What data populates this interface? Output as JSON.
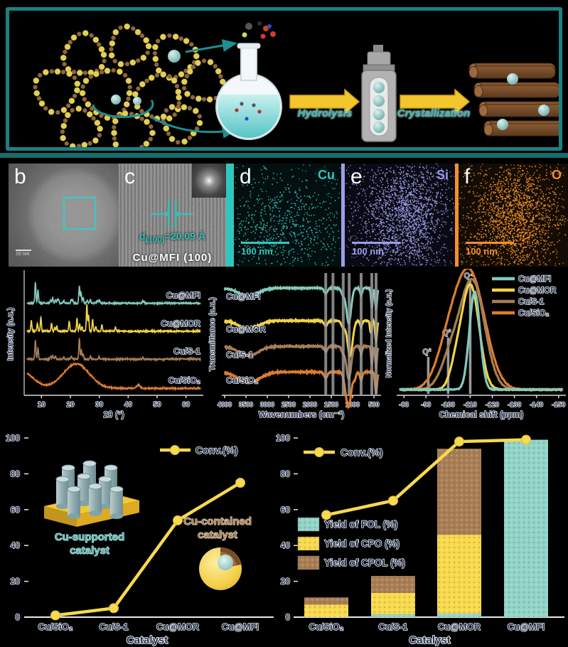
{
  "figure": {
    "scheme": {
      "hydrolysis": "Hydrolysis",
      "crystallization": "Crystallization"
    },
    "tem_panels": {
      "b": {
        "label": "b",
        "scalebar": "10 nm"
      },
      "c": {
        "label": "c",
        "d_prefix": "d",
        "d_sub": "(100)",
        "d_value": "=20.09 Å",
        "caption": "Cu@MFI (100)"
      },
      "d": {
        "label": "d",
        "element": "Cu",
        "scalebar": "100 nm",
        "color": "#2fc7bd"
      },
      "e": {
        "label": "e",
        "element": "Si",
        "scalebar": "100 nm",
        "color": "#9d9de8"
      },
      "f": {
        "label": "f",
        "element": "O",
        "scalebar": "100 nm",
        "color": "#f2912b"
      }
    }
  },
  "colors": {
    "teal_accent": "#1d8080",
    "series_teal": "#82cbbd",
    "series_yellow": "#f2d348",
    "series_brown": "#a87e55",
    "series_orange": "#dd7d2e",
    "conv_line": "#f6d94f"
  },
  "chart_data": [
    {
      "id": "xrd",
      "type": "line",
      "xlabel": "2θ (°)",
      "ylabel": "Intensity (a.u.)",
      "xlim": [
        5,
        65
      ],
      "xticks": [
        10,
        20,
        30,
        40,
        50,
        60
      ],
      "series": [
        {
          "name": "Cu@MFI",
          "color": "#82cbbd",
          "offset": 0.79,
          "peaks": [
            [
              7.9,
              0.17
            ],
            [
              8.8,
              0.11
            ],
            [
              13.2,
              0.03
            ],
            [
              13.9,
              0.045
            ],
            [
              14.8,
              0.03
            ],
            [
              15.5,
              0.028
            ],
            [
              15.9,
              0.032
            ],
            [
              17.7,
              0.022
            ],
            [
              20.3,
              0.032
            ],
            [
              20.8,
              0.025
            ],
            [
              23.1,
              0.14
            ],
            [
              23.7,
              0.09
            ],
            [
              24.4,
              0.05
            ],
            [
              25.9,
              0.022
            ],
            [
              26.9,
              0.032
            ],
            [
              29.3,
              0.022
            ],
            [
              29.9,
              0.02
            ],
            [
              30.3,
              0.015
            ],
            [
              45.0,
              0.016
            ],
            [
              45.5,
              0.012
            ]
          ]
        },
        {
          "name": "Cu@MOR",
          "color": "#f2d348",
          "offset": 0.55,
          "peaks": [
            [
              6.5,
              0.085
            ],
            [
              8.6,
              0.06
            ],
            [
              9.8,
              0.115
            ],
            [
              13.5,
              0.065
            ],
            [
              14.6,
              0.032
            ],
            [
              15.3,
              0.045
            ],
            [
              19.6,
              0.085
            ],
            [
              22.3,
              0.105
            ],
            [
              23.2,
              0.06
            ],
            [
              24.0,
              0.04
            ],
            [
              25.7,
              0.22
            ],
            [
              26.3,
              0.13
            ],
            [
              27.7,
              0.095
            ],
            [
              28.8,
              0.04
            ],
            [
              30.9,
              0.055
            ],
            [
              35.6,
              0.03
            ]
          ]
        },
        {
          "name": "Cu/S-1",
          "color": "#a87e55",
          "offset": 0.31,
          "peaks": [
            [
              7.9,
              0.155
            ],
            [
              8.8,
              0.095
            ],
            [
              13.2,
              0.025
            ],
            [
              13.9,
              0.035
            ],
            [
              14.8,
              0.025
            ],
            [
              17.7,
              0.02
            ],
            [
              20.3,
              0.025
            ],
            [
              23.1,
              0.17
            ],
            [
              23.8,
              0.08
            ],
            [
              24.4,
              0.045
            ],
            [
              26.9,
              0.025
            ],
            [
              29.9,
              0.02
            ],
            [
              45.0,
              0.014
            ]
          ]
        },
        {
          "name": "Cu/SiO₂",
          "color": "#dd7d2e",
          "offset": 0.06,
          "peaks": [
            [
              3,
              0.14,
              4
            ],
            [
              22,
              0.2,
              4.5
            ],
            [
              43.5,
              0.025,
              0.6
            ]
          ]
        }
      ]
    },
    {
      "id": "ftir",
      "type": "line",
      "xlabel": "Wavenumbers (cm⁻¹)",
      "ylabel": "Transmittance (a.u.)",
      "xlim": [
        4000,
        400
      ],
      "xticks": [
        4000,
        3500,
        3000,
        2500,
        2000,
        1500,
        1000,
        500
      ],
      "bands": [
        1630,
        1460,
        1220,
        1080,
        800,
        550,
        450
      ],
      "series": [
        {
          "name": "Cu@MFI",
          "color": "#82cbbd",
          "offset": 0.92,
          "dips": [
            [
              3440,
              0.07,
              230
            ],
            [
              1630,
              0.045,
              40
            ],
            [
              1225,
              0.055,
              40
            ],
            [
              1090,
              0.3,
              55
            ],
            [
              800,
              0.06,
              25
            ],
            [
              550,
              0.17,
              18
            ],
            [
              450,
              0.18,
              22
            ]
          ]
        },
        {
          "name": "Cu@MOR",
          "color": "#f2d348",
          "offset": 0.64,
          "dips": [
            [
              3440,
              0.07,
              230
            ],
            [
              1630,
              0.045,
              40
            ],
            [
              1220,
              0.055,
              45
            ],
            [
              1060,
              0.3,
              60
            ],
            [
              800,
              0.05,
              25
            ],
            [
              575,
              0.1,
              20
            ],
            [
              450,
              0.17,
              22
            ]
          ]
        },
        {
          "name": "Cu/S-1",
          "color": "#a87e55",
          "offset": 0.42,
          "dips": [
            [
              3440,
              0.08,
              230
            ],
            [
              1630,
              0.04,
              40
            ],
            [
              1225,
              0.05,
              40
            ],
            [
              1090,
              0.28,
              55
            ],
            [
              800,
              0.06,
              25
            ],
            [
              550,
              0.15,
              18
            ],
            [
              450,
              0.17,
              22
            ]
          ]
        },
        {
          "name": "Cu/SiO₂",
          "color": "#dd7d2e",
          "offset": 0.2,
          "dips": [
            [
              3430,
              0.09,
              250
            ],
            [
              1630,
              0.05,
              40
            ],
            [
              1100,
              0.3,
              65
            ],
            [
              950,
              0.05,
              30
            ],
            [
              800,
              0.07,
              28
            ],
            [
              450,
              0.18,
              24
            ]
          ]
        }
      ]
    },
    {
      "id": "nmr",
      "type": "line",
      "xlabel": "Chemical shift (ppm)",
      "ylabel": "Normalized Intensity (a.u.)",
      "xlim": [
        -78,
        -152
      ],
      "xticks": [
        -80,
        -90,
        -100,
        -110,
        -120,
        -130,
        -140,
        -150
      ],
      "legend_position": "top-right",
      "markers": [
        {
          "label": "Q²",
          "x": -91,
          "h": 0.3
        },
        {
          "label": "Q³",
          "x": -100,
          "h": 0.47
        },
        {
          "label": "Q⁴",
          "x": -110,
          "h": 0.97
        }
      ],
      "series": [
        {
          "name": "Cu@MFI",
          "color": "#82cbbd",
          "peaks": [
            [
              -112,
              0.86,
              2.4
            ]
          ]
        },
        {
          "name": "Cu@MOR",
          "color": "#f2d348",
          "peaks": [
            [
              -110.3,
              0.9,
              3.8
            ],
            [
              -104,
              0.22,
              3
            ]
          ]
        },
        {
          "name": "Cu/S-1",
          "color": "#a87e55",
          "peaks": [
            [
              -111,
              0.95,
              5.5
            ],
            [
              -101,
              0.25,
              4.5
            ]
          ]
        },
        {
          "name": "Cu/SiO₂",
          "color": "#dd7d2e",
          "peaks": [
            [
              -110,
              1.0,
              6.8
            ],
            [
              -100,
              0.3,
              5.5
            ]
          ]
        }
      ]
    },
    {
      "id": "conv",
      "type": "line",
      "xlabel": "Catalyst",
      "ylabel": "",
      "ylim": [
        0,
        100
      ],
      "yticks": [
        0,
        20,
        40,
        60,
        80,
        100
      ],
      "categories": [
        "Cu/SiO₂",
        "Cu/S-1",
        "Cu@MOR",
        "Cu@MFI"
      ],
      "series": [
        {
          "name": "Conv.(%)",
          "color": "#f6d94f",
          "values": [
            1,
            5,
            54,
            75
          ]
        }
      ],
      "annotations": [
        {
          "text_line1": "Cu-supported",
          "text_line2": "catalyst",
          "color": "#4fbdb5"
        },
        {
          "text_line1": "Cu-contained",
          "text_line2": "catalyst",
          "color": "#b5824f"
        }
      ]
    },
    {
      "id": "yield",
      "type": "bar",
      "stacked": true,
      "xlabel": "Catalyst",
      "ylim": [
        0,
        100
      ],
      "yticks": [
        0,
        20,
        40,
        60,
        80,
        100
      ],
      "categories": [
        "Cu/SiO₂",
        "Cu/S-1",
        "Cu@MOR",
        "Cu@MFI"
      ],
      "line": {
        "name": "Conv.(%)",
        "color": "#f6d94f",
        "values": [
          57,
          65,
          98,
          99
        ]
      },
      "series": [
        {
          "name": "Yield of FOL (%)",
          "color": "#8fd4c8",
          "values": [
            0,
            1.5,
            2,
            99
          ]
        },
        {
          "name": "Yield of CPO (%)",
          "color": "#f7d94c",
          "values": [
            7,
            12,
            44,
            0
          ]
        },
        {
          "name": "Yield of CPOL (%)",
          "color": "#a87e55",
          "values": [
            4,
            9.5,
            48,
            0
          ]
        }
      ]
    }
  ]
}
